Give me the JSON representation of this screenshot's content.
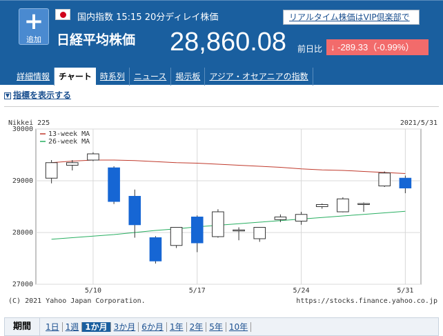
{
  "header": {
    "add_plus": "+",
    "add_label": "追加",
    "meta_line": "国内指数  15:15  20分ディレイ株価",
    "vip_link": "リアルタイム株価はVIP倶楽部で",
    "stock_name": "日経平均株価",
    "price": "28,860.08",
    "change_label": "前日比",
    "change_value": "-289.33（-0.99%）",
    "change_arrow": "down-arrow-icon"
  },
  "tabs": [
    "詳細情報",
    "チャート",
    "時系列",
    "ニュース",
    "掲示板",
    "アジア・オセアニアの指数"
  ],
  "active_tab": 1,
  "indicator_toggle": "指標を表示する",
  "periods": {
    "label": "期間",
    "options": [
      "1日",
      "1週",
      "1か月",
      "3か月",
      "6か月",
      "1年",
      "2年",
      "5年",
      "10年"
    ],
    "active": 2
  },
  "colors": {
    "header_bg": "#1a5f9f",
    "up_candle": "#ffffff",
    "down_candle": "#1666d4",
    "ma13": "#c0392b",
    "ma26": "#27ae60",
    "change_bg": "#f26b6b"
  },
  "chart_data": {
    "type": "candlestick",
    "title": "Nikkei 225",
    "date_label": "2021/5/31",
    "copyright": "(C) 2021 Yahoo Japan Corporation.",
    "source_url": "https://stocks.finance.yahoo.co.jp",
    "ylim": [
      27000,
      30000
    ],
    "yticks": [
      "30000",
      "29000",
      "28000",
      "27000"
    ],
    "xticks": [
      {
        "label": "5/10",
        "index": 3
      },
      {
        "label": "5/17",
        "index": 8
      },
      {
        "label": "5/24",
        "index": 13
      },
      {
        "label": "5/31",
        "index": 18
      }
    ],
    "legend": [
      {
        "name": "13-week MA",
        "color": "#c0392b"
      },
      {
        "name": "26-week MA",
        "color": "#27ae60"
      }
    ],
    "candles": [
      {
        "date": "5/6",
        "open": 29050,
        "high": 29400,
        "low": 28950,
        "close": 29350
      },
      {
        "date": "5/7",
        "open": 29300,
        "high": 29400,
        "low": 29200,
        "close": 29350
      },
      {
        "date": "5/10",
        "open": 29400,
        "high": 29550,
        "low": 29380,
        "close": 29520
      },
      {
        "date": "5/11",
        "open": 29250,
        "high": 29280,
        "low": 28550,
        "close": 28600
      },
      {
        "date": "5/12",
        "open": 28700,
        "high": 28830,
        "low": 27900,
        "close": 28150
      },
      {
        "date": "5/13",
        "open": 27900,
        "high": 27930,
        "low": 27400,
        "close": 27450
      },
      {
        "date": "5/14",
        "open": 27750,
        "high": 28100,
        "low": 27700,
        "close": 28100
      },
      {
        "date": "5/17",
        "open": 28300,
        "high": 28330,
        "low": 27620,
        "close": 27800
      },
      {
        "date": "5/18",
        "open": 27920,
        "high": 28450,
        "low": 27900,
        "close": 28400
      },
      {
        "date": "5/19",
        "open": 28050,
        "high": 28100,
        "low": 27850,
        "close": 28050
      },
      {
        "date": "5/20",
        "open": 27880,
        "high": 28100,
        "low": 27820,
        "close": 28100
      },
      {
        "date": "5/21",
        "open": 28250,
        "high": 28350,
        "low": 28200,
        "close": 28300
      },
      {
        "date": "5/24",
        "open": 28220,
        "high": 28400,
        "low": 28150,
        "close": 28350
      },
      {
        "date": "5/25",
        "open": 28500,
        "high": 28560,
        "low": 28460,
        "close": 28540
      },
      {
        "date": "5/26",
        "open": 28400,
        "high": 28680,
        "low": 28390,
        "close": 28650
      },
      {
        "date": "5/27",
        "open": 28560,
        "high": 28580,
        "low": 28400,
        "close": 28560
      },
      {
        "date": "5/28",
        "open": 28900,
        "high": 29180,
        "low": 28880,
        "close": 29150
      },
      {
        "date": "5/31",
        "open": 29050,
        "high": 29100,
        "low": 28760,
        "close": 28860
      }
    ],
    "ma13": [
      29350,
      29380,
      29400,
      29400,
      29390,
      29370,
      29350,
      29340,
      29320,
      29300,
      29280,
      29260,
      29230,
      29210,
      29200,
      29180,
      29160,
      29140
    ],
    "ma26": [
      27870,
      27900,
      27930,
      27960,
      28000,
      28040,
      28070,
      28110,
      28140,
      28170,
      28200,
      28230,
      28260,
      28290,
      28320,
      28350,
      28380,
      28410
    ],
    "grid": true
  }
}
